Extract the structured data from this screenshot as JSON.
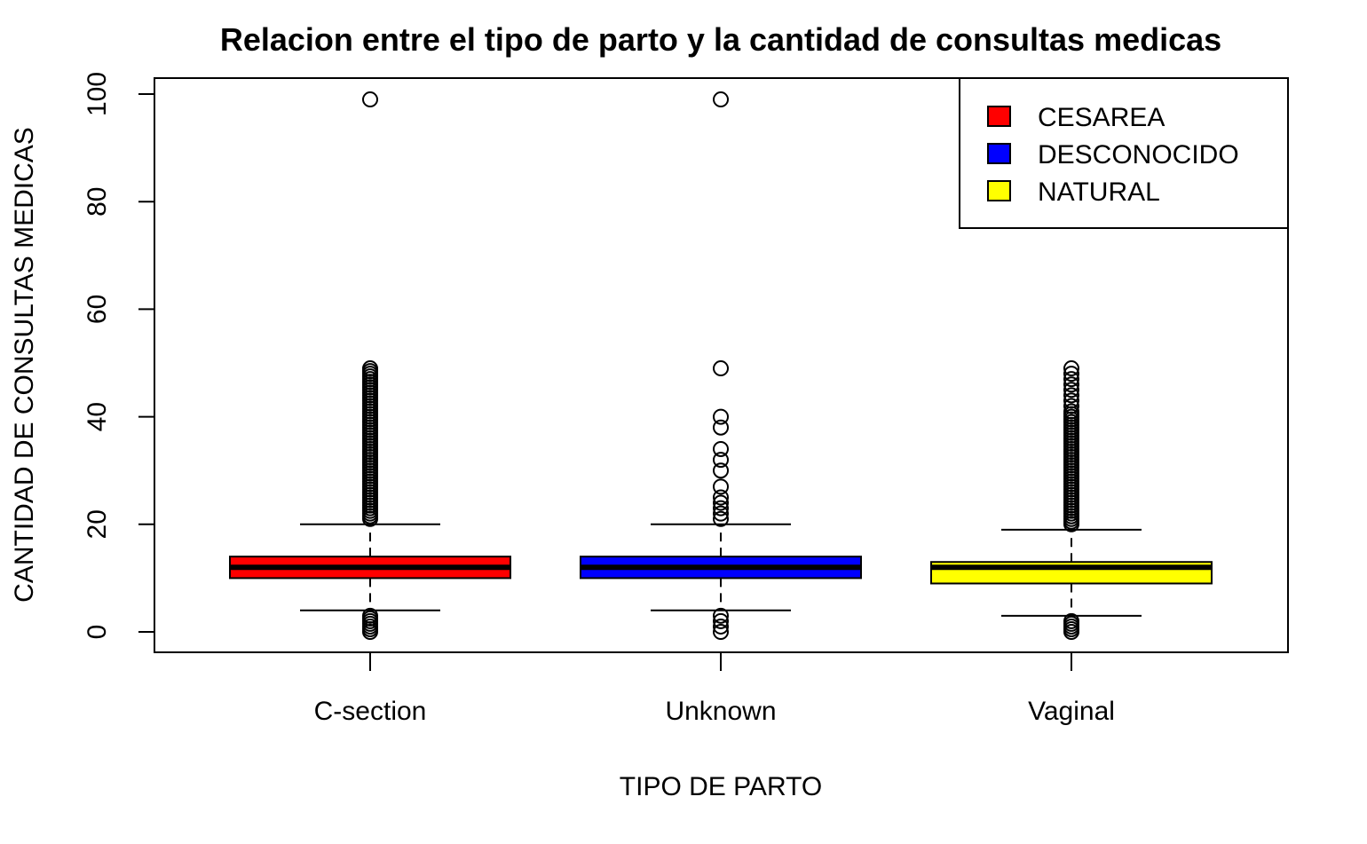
{
  "chart_data": {
    "type": "boxplot",
    "title": "Relacion entre el tipo de parto y la cantidad de consultas medicas",
    "xlabel": "TIPO DE PARTO",
    "ylabel": "CANTIDAD DE CONSULTAS MEDICAS",
    "ylim": [
      0,
      100
    ],
    "yticks": [
      0,
      20,
      40,
      60,
      80,
      100
    ],
    "grid": false,
    "legend_position": "top-right",
    "categories": [
      "C-section",
      "Unknown",
      "Vaginal"
    ],
    "series": [
      {
        "category": "C-section",
        "color": "#ff0000",
        "whisker_low": 4,
        "q1": 10,
        "median": 12,
        "q3": 14,
        "whisker_high": 20,
        "outliers": [
          0,
          0.5,
          1,
          1.5,
          2,
          2.5,
          3,
          21,
          21.5,
          22,
          22.5,
          23,
          23.5,
          24,
          24.5,
          25,
          25.5,
          26,
          26.5,
          27,
          27.5,
          28,
          28.5,
          29,
          29.5,
          30,
          30.5,
          31,
          31.5,
          32,
          32.5,
          33,
          33.5,
          34,
          34.5,
          35,
          35.5,
          36,
          36.5,
          37,
          37.5,
          38,
          38.5,
          39,
          39.5,
          40,
          40.5,
          41,
          41.5,
          42,
          42.5,
          43,
          43.5,
          44,
          44.5,
          45,
          45.5,
          46,
          46.5,
          47,
          47.5,
          48,
          48.5,
          49,
          99
        ]
      },
      {
        "category": "Unknown",
        "color": "#0000ff",
        "whisker_low": 4,
        "q1": 10,
        "median": 12,
        "q3": 14,
        "whisker_high": 20,
        "outliers": [
          0,
          1,
          2,
          3,
          21,
          22,
          23,
          24,
          25,
          27,
          30,
          32,
          34,
          38,
          40,
          49,
          99
        ]
      },
      {
        "category": "Vaginal",
        "color": "#ffff00",
        "whisker_low": 3,
        "q1": 9,
        "median": 12,
        "q3": 13,
        "whisker_high": 19,
        "outliers": [
          0,
          0.5,
          1,
          1.5,
          2,
          20,
          20.5,
          21,
          21.5,
          22,
          22.5,
          23,
          23.5,
          24,
          24.5,
          25,
          25.5,
          26,
          26.5,
          27,
          27.5,
          28,
          28.5,
          29,
          29.5,
          30,
          30.5,
          31,
          31.5,
          32,
          32.5,
          33,
          33.5,
          34,
          34.5,
          35,
          35.5,
          36,
          36.5,
          37,
          37.5,
          38,
          38.5,
          39,
          39.5,
          40,
          40.5,
          41,
          42,
          43,
          44,
          45,
          46,
          47,
          48,
          49
        ]
      }
    ],
    "legend": [
      {
        "label": "CESAREA",
        "color": "#ff0000"
      },
      {
        "label": "DESCONOCIDO",
        "color": "#0000ff"
      },
      {
        "label": "NATURAL",
        "color": "#ffff00"
      }
    ]
  }
}
